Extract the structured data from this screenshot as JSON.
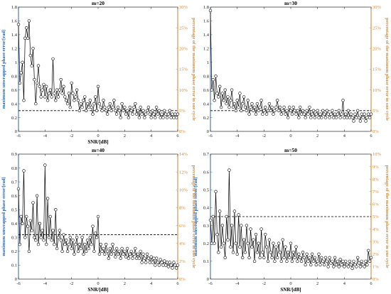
{
  "chart_data": [
    {
      "type": "line",
      "title": "m=20",
      "xlabel": "SNR/[dB]",
      "ylabel": "maximum unwrapped phase error/[rad]",
      "ylabel_right": "percentage of the maximum phase error in one cycle",
      "xlim": [
        -6,
        6
      ],
      "ylim": [
        0,
        1.8
      ],
      "ylim_right": [
        0,
        30
      ],
      "xticks": [
        -6,
        -4,
        -2,
        0,
        2,
        4,
        6
      ],
      "xtick_labels": [
        "-6",
        "-4",
        "-2",
        "0",
        "2",
        "4",
        "6"
      ],
      "yticks": [
        0,
        0.2,
        0.4,
        0.6,
        0.8,
        1,
        1.2,
        1.4,
        1.6,
        1.8
      ],
      "ytick_labels": [
        "0",
        "0.2",
        "0.4",
        "0.6",
        "0.8",
        "1",
        "1.2",
        "1.4",
        "1.6",
        "1.8"
      ],
      "yticks_right": [
        0,
        5,
        10,
        15,
        20,
        25,
        30
      ],
      "ytick_labels_right": [
        "0%",
        "5%",
        "10%",
        "15%",
        "20%",
        "25%",
        "30%"
      ],
      "threshold": 0.3,
      "x": [
        -6.0,
        -5.9,
        -5.8,
        -5.7,
        -5.6,
        -5.5,
        -5.4,
        -5.3,
        -5.2,
        -5.1,
        -5.0,
        -4.9,
        -4.8,
        -4.7,
        -4.6,
        -4.5,
        -4.4,
        -4.3,
        -4.2,
        -4.1,
        -4.0,
        -3.9,
        -3.8,
        -3.7,
        -3.6,
        -3.5,
        -3.4,
        -3.3,
        -3.2,
        -3.1,
        -3.0,
        -2.9,
        -2.8,
        -2.7,
        -2.6,
        -2.5,
        -2.4,
        -2.3,
        -2.2,
        -2.1,
        -2.0,
        -1.9,
        -1.8,
        -1.7,
        -1.6,
        -1.5,
        -1.4,
        -1.3,
        -1.2,
        -1.1,
        -1.0,
        -0.9,
        -0.8,
        -0.7,
        -0.6,
        -0.5,
        -0.4,
        -0.3,
        -0.2,
        -0.1,
        0.0,
        0.1,
        0.2,
        0.3,
        0.4,
        0.5,
        0.6,
        0.7,
        0.8,
        0.9,
        1.0,
        1.1,
        1.2,
        1.3,
        1.4,
        1.5,
        1.6,
        1.7,
        1.8,
        1.9,
        2.0,
        2.1,
        2.2,
        2.3,
        2.4,
        2.5,
        2.6,
        2.7,
        2.8,
        2.9,
        3.0,
        3.1,
        3.2,
        3.3,
        3.4,
        3.5,
        3.6,
        3.7,
        3.8,
        3.9,
        4.0,
        4.1,
        4.2,
        4.3,
        4.4,
        4.5,
        4.6,
        4.7,
        4.8,
        4.9,
        5.0,
        5.1,
        5.2,
        5.3,
        5.4,
        5.5,
        5.6,
        5.7,
        5.8,
        5.9,
        6.0
      ],
      "values": [
        1.55,
        0.7,
        0.85,
        1.0,
        0.45,
        1.35,
        1.5,
        1.35,
        1.6,
        1.1,
        0.95,
        1.2,
        0.75,
        0.4,
        0.7,
        0.95,
        0.65,
        0.5,
        0.6,
        0.68,
        0.5,
        0.65,
        0.45,
        0.55,
        0.6,
        0.5,
        1.05,
        0.55,
        0.45,
        0.6,
        0.5,
        0.6,
        0.75,
        0.55,
        0.65,
        0.5,
        0.45,
        0.4,
        0.55,
        0.35,
        0.7,
        0.55,
        0.45,
        0.5,
        0.6,
        0.45,
        0.3,
        0.4,
        0.35,
        0.45,
        0.5,
        0.3,
        0.4,
        0.35,
        0.45,
        0.35,
        0.25,
        0.4,
        0.5,
        0.3,
        0.65,
        0.4,
        0.35,
        0.3,
        0.45,
        0.35,
        0.3,
        0.25,
        0.35,
        0.4,
        0.3,
        0.35,
        0.45,
        0.3,
        0.25,
        0.35,
        0.3,
        0.2,
        0.4,
        0.3,
        0.35,
        0.25,
        0.3,
        0.2,
        0.35,
        0.3,
        0.25,
        0.35,
        0.4,
        0.25,
        0.3,
        0.2,
        0.35,
        0.25,
        0.3,
        0.2,
        0.25,
        0.3,
        0.35,
        0.25,
        0.2,
        0.3,
        0.25,
        0.2,
        0.35,
        0.25,
        0.3,
        0.2,
        0.25,
        0.2,
        0.3,
        0.25,
        0.2,
        0.25,
        0.3,
        0.2,
        0.25,
        0.2,
        0.25,
        0.2,
        0.25
      ]
    },
    {
      "type": "line",
      "title": "m=30",
      "xlabel": "",
      "ylabel": "",
      "ylabel_right": "percentage of the maximum phase error in one cycle",
      "xlim": [
        -6,
        6
      ],
      "ylim": [
        0,
        1.8
      ],
      "ylim_right": [
        0,
        30
      ],
      "xticks": [
        -6,
        -4,
        -2,
        0,
        2,
        4,
        6
      ],
      "xtick_labels": [
        "-6",
        "-4",
        "-2",
        "0",
        "2",
        "4",
        "6"
      ],
      "yticks": [
        0,
        0.2,
        0.4,
        0.6,
        0.8,
        1,
        1.2,
        1.4,
        1.6,
        1.8
      ],
      "ytick_labels": [
        "0",
        "0.2",
        "0.4",
        "0.6",
        "0.8",
        "1",
        "1.2",
        "1.4",
        "1.6",
        "1.8"
      ],
      "yticks_right": [
        0,
        5,
        10,
        15,
        20,
        25,
        30
      ],
      "ytick_labels_right": [
        "0%",
        "5%",
        "10%",
        "15%",
        "20%",
        "25%",
        "30%"
      ],
      "threshold": 0.3,
      "x": [
        -6.0,
        -5.9,
        -5.8,
        -5.7,
        -5.6,
        -5.5,
        -5.4,
        -5.3,
        -5.2,
        -5.1,
        -5.0,
        -4.9,
        -4.8,
        -4.7,
        -4.6,
        -4.5,
        -4.4,
        -4.3,
        -4.2,
        -4.1,
        -4.0,
        -3.9,
        -3.8,
        -3.7,
        -3.6,
        -3.5,
        -3.4,
        -3.3,
        -3.2,
        -3.1,
        -3.0,
        -2.9,
        -2.8,
        -2.7,
        -2.6,
        -2.5,
        -2.4,
        -2.3,
        -2.2,
        -2.1,
        -2.0,
        -1.9,
        -1.8,
        -1.7,
        -1.6,
        -1.5,
        -1.4,
        -1.3,
        -1.2,
        -1.1,
        -1.0,
        -0.9,
        -0.8,
        -0.7,
        -0.6,
        -0.5,
        -0.4,
        -0.3,
        -0.2,
        -0.1,
        0.0,
        0.1,
        0.2,
        0.3,
        0.4,
        0.5,
        0.6,
        0.7,
        0.8,
        0.9,
        1.0,
        1.1,
        1.2,
        1.3,
        1.4,
        1.5,
        1.6,
        1.7,
        1.8,
        1.9,
        2.0,
        2.1,
        2.2,
        2.3,
        2.4,
        2.5,
        2.6,
        2.7,
        2.8,
        2.9,
        3.0,
        3.1,
        3.2,
        3.3,
        3.4,
        3.5,
        3.6,
        3.7,
        3.8,
        3.9,
        4.0,
        4.1,
        4.2,
        4.3,
        4.4,
        4.5,
        4.6,
        4.7,
        4.8,
        4.9,
        5.0,
        5.1,
        5.2,
        5.3,
        5.4,
        5.5,
        5.6,
        5.7,
        5.8,
        5.9,
        6.0
      ],
      "values": [
        1.75,
        0.6,
        0.75,
        0.45,
        0.8,
        0.55,
        0.5,
        0.65,
        0.35,
        0.55,
        0.45,
        0.6,
        0.4,
        0.5,
        0.35,
        0.45,
        0.6,
        0.35,
        0.4,
        0.3,
        0.45,
        0.35,
        0.55,
        0.3,
        0.4,
        0.5,
        0.35,
        0.3,
        0.45,
        0.25,
        0.35,
        0.4,
        0.3,
        0.35,
        0.25,
        0.4,
        0.3,
        0.35,
        0.45,
        0.25,
        0.3,
        0.35,
        0.25,
        0.3,
        0.4,
        0.3,
        0.35,
        0.25,
        0.3,
        0.35,
        0.45,
        0.3,
        0.35,
        0.25,
        0.3,
        0.35,
        0.25,
        0.3,
        0.2,
        0.35,
        0.3,
        0.25,
        0.35,
        0.3,
        0.25,
        0.3,
        0.2,
        0.35,
        0.25,
        0.3,
        0.25,
        0.2,
        0.3,
        0.25,
        0.35,
        0.2,
        0.25,
        0.3,
        0.2,
        0.25,
        0.3,
        0.2,
        0.25,
        0.2,
        0.3,
        0.25,
        0.2,
        0.3,
        0.25,
        0.2,
        0.25,
        0.3,
        0.2,
        0.25,
        0.2,
        0.25,
        0.3,
        0.2,
        0.25,
        0.45,
        0.2,
        0.25,
        0.2,
        0.3,
        0.2,
        0.25,
        0.2,
        0.15,
        0.25,
        0.2,
        0.3,
        0.2,
        0.15,
        0.25,
        0.2,
        0.25,
        0.15,
        0.2,
        0.25,
        0.2,
        0.25
      ]
    },
    {
      "type": "line",
      "title": "m=40",
      "xlabel": "SNR/[dB]",
      "ylabel": "maximum unwrapped phase error/[rad]",
      "ylabel_right": "percentage of the maximum phase error in one cycle",
      "xlim": [
        -6,
        6
      ],
      "ylim": [
        0,
        0.9
      ],
      "ylim_right": [
        0,
        14
      ],
      "xticks": [
        -6,
        -4,
        -2,
        0,
        2,
        4,
        6
      ],
      "xtick_labels": [
        "-6",
        "-4",
        "-2",
        "0",
        "2",
        "4",
        "6"
      ],
      "yticks": [
        0,
        0.1,
        0.2,
        0.3,
        0.4,
        0.5,
        0.6,
        0.7,
        0.8,
        0.9
      ],
      "ytick_labels": [
        "0",
        "0.1",
        "0.2",
        "0.3",
        "0.4",
        "0.5",
        "0.6",
        "0.7",
        "0.8",
        "0.9"
      ],
      "yticks_right": [
        0,
        2,
        4,
        6,
        8,
        10,
        12,
        14
      ],
      "ytick_labels_right": [
        "0%",
        "2%",
        "4%",
        "6%",
        "8%",
        "10%",
        "12%",
        "14%"
      ],
      "threshold": 0.32,
      "x": [
        -6.0,
        -5.9,
        -5.8,
        -5.7,
        -5.6,
        -5.5,
        -5.4,
        -5.3,
        -5.2,
        -5.1,
        -5.0,
        -4.9,
        -4.8,
        -4.7,
        -4.6,
        -4.5,
        -4.4,
        -4.3,
        -4.2,
        -4.1,
        -4.0,
        -3.9,
        -3.8,
        -3.7,
        -3.6,
        -3.5,
        -3.4,
        -3.3,
        -3.2,
        -3.1,
        -3.0,
        -2.9,
        -2.8,
        -2.7,
        -2.6,
        -2.5,
        -2.4,
        -2.3,
        -2.2,
        -2.1,
        -2.0,
        -1.9,
        -1.8,
        -1.7,
        -1.6,
        -1.5,
        -1.4,
        -1.3,
        -1.2,
        -1.1,
        -1.0,
        -0.9,
        -0.8,
        -0.7,
        -0.6,
        -0.5,
        -0.4,
        -0.3,
        -0.2,
        -0.1,
        0.0,
        0.1,
        0.2,
        0.3,
        0.4,
        0.5,
        0.6,
        0.7,
        0.8,
        0.9,
        1.0,
        1.1,
        1.2,
        1.3,
        1.4,
        1.5,
        1.6,
        1.7,
        1.8,
        1.9,
        2.0,
        2.1,
        2.2,
        2.3,
        2.4,
        2.5,
        2.6,
        2.7,
        2.8,
        2.9,
        3.0,
        3.1,
        3.2,
        3.3,
        3.4,
        3.5,
        3.6,
        3.7,
        3.8,
        3.9,
        4.0,
        4.1,
        4.2,
        4.3,
        4.4,
        4.5,
        4.6,
        4.7,
        4.8,
        4.9,
        5.0,
        5.1,
        5.2,
        5.3,
        5.4,
        5.5,
        5.6,
        5.7,
        5.8,
        5.9,
        6.0
      ],
      "values": [
        0.65,
        0.25,
        0.45,
        0.4,
        0.78,
        0.3,
        0.45,
        0.38,
        0.2,
        0.42,
        0.35,
        0.55,
        0.3,
        0.28,
        0.6,
        0.25,
        0.4,
        0.3,
        0.35,
        0.28,
        0.82,
        0.25,
        0.58,
        0.3,
        0.45,
        0.28,
        0.35,
        0.25,
        0.5,
        0.22,
        0.3,
        0.35,
        0.28,
        0.2,
        0.32,
        0.25,
        0.28,
        0.2,
        0.25,
        0.3,
        0.22,
        0.28,
        0.18,
        0.25,
        0.3,
        0.2,
        0.25,
        0.22,
        0.3,
        0.18,
        0.25,
        0.2,
        0.28,
        0.22,
        0.3,
        0.25,
        0.38,
        0.2,
        0.33,
        0.3,
        0.45,
        0.18,
        0.25,
        0.2,
        0.22,
        0.18,
        0.25,
        0.2,
        0.15,
        0.22,
        0.18,
        0.25,
        0.2,
        0.16,
        0.22,
        0.18,
        0.2,
        0.15,
        0.22,
        0.18,
        0.2,
        0.16,
        0.22,
        0.15,
        0.18,
        0.2,
        0.15,
        0.18,
        0.22,
        0.15,
        0.18,
        0.15,
        0.2,
        0.12,
        0.18,
        0.15,
        0.12,
        0.18,
        0.15,
        0.12,
        0.16,
        0.12,
        0.15,
        0.1,
        0.15,
        0.12,
        0.1,
        0.14,
        0.12,
        0.1,
        0.13,
        0.1,
        0.12,
        0.09,
        0.12,
        0.1,
        0.08,
        0.12,
        0.1,
        0.08,
        0.1
      ]
    },
    {
      "type": "line",
      "title": "m=50",
      "xlabel": "SNR/[dB]",
      "ylabel": "maximum unwrapped phase error/[rad]",
      "ylabel_right": "percentage of the maximum phase error in one cycle",
      "xlim": [
        -6,
        6
      ],
      "ylim": [
        0,
        0.7
      ],
      "ylim_right": [
        0,
        10
      ],
      "xticks": [
        -6,
        -4,
        -2,
        0,
        2,
        4,
        6
      ],
      "xtick_labels": [
        "-6",
        "-4",
        "-2",
        "0",
        "2",
        "4",
        "6"
      ],
      "yticks": [
        0,
        0.1,
        0.2,
        0.3,
        0.4,
        0.5,
        0.6,
        0.7
      ],
      "ytick_labels": [
        "0",
        "0.1",
        "0.2",
        "0.3",
        "0.4",
        "0.5",
        "0.6",
        "0.7"
      ],
      "yticks_right": [
        0,
        1,
        2,
        3,
        4,
        5,
        6,
        7,
        8,
        9,
        10
      ],
      "ytick_labels_right": [
        "0%",
        "1%",
        "2%",
        "3%",
        "4%",
        "5%",
        "6%",
        "7%",
        "8%",
        "9%",
        "10%"
      ],
      "threshold": 0.35,
      "x": [
        -6.0,
        -5.9,
        -5.8,
        -5.7,
        -5.6,
        -5.5,
        -5.4,
        -5.3,
        -5.2,
        -5.1,
        -5.0,
        -4.9,
        -4.8,
        -4.7,
        -4.6,
        -4.5,
        -4.4,
        -4.3,
        -4.2,
        -4.1,
        -4.0,
        -3.9,
        -3.8,
        -3.7,
        -3.6,
        -3.5,
        -3.4,
        -3.3,
        -3.2,
        -3.1,
        -3.0,
        -2.9,
        -2.8,
        -2.7,
        -2.6,
        -2.5,
        -2.4,
        -2.3,
        -2.2,
        -2.1,
        -2.0,
        -1.9,
        -1.8,
        -1.7,
        -1.6,
        -1.5,
        -1.4,
        -1.3,
        -1.2,
        -1.1,
        -1.0,
        -0.9,
        -0.8,
        -0.7,
        -0.6,
        -0.5,
        -0.4,
        -0.3,
        -0.2,
        -0.1,
        0.0,
        0.1,
        0.2,
        0.3,
        0.4,
        0.5,
        0.6,
        0.7,
        0.8,
        0.9,
        1.0,
        1.1,
        1.2,
        1.3,
        1.4,
        1.5,
        1.6,
        1.7,
        1.8,
        1.9,
        2.0,
        2.1,
        2.2,
        2.3,
        2.4,
        2.5,
        2.6,
        2.7,
        2.8,
        2.9,
        3.0,
        3.1,
        3.2,
        3.3,
        3.4,
        3.5,
        3.6,
        3.7,
        3.8,
        3.9,
        4.0,
        4.1,
        4.2,
        4.3,
        4.4,
        4.5,
        4.6,
        4.7,
        4.8,
        4.9,
        5.0,
        5.1,
        5.2,
        5.3,
        5.4,
        5.5,
        5.6,
        5.7,
        5.8,
        5.9,
        6.0
      ],
      "values": [
        0.33,
        0.2,
        0.35,
        0.2,
        0.49,
        0.25,
        0.15,
        0.38,
        0.18,
        0.3,
        0.2,
        0.12,
        0.35,
        0.22,
        0.61,
        0.18,
        0.3,
        0.15,
        0.38,
        0.2,
        0.14,
        0.36,
        0.18,
        0.3,
        0.12,
        0.22,
        0.15,
        0.3,
        0.2,
        0.12,
        0.28,
        0.18,
        0.22,
        0.1,
        0.25,
        0.15,
        0.2,
        0.12,
        0.28,
        0.15,
        0.12,
        0.25,
        0.18,
        0.1,
        0.22,
        0.15,
        0.12,
        0.2,
        0.1,
        0.18,
        0.12,
        0.2,
        0.15,
        0.1,
        0.22,
        0.12,
        0.18,
        0.1,
        0.15,
        0.12,
        0.2,
        0.1,
        0.15,
        0.12,
        0.18,
        0.1,
        0.14,
        0.12,
        0.1,
        0.15,
        0.12,
        0.08,
        0.14,
        0.1,
        0.12,
        0.08,
        0.14,
        0.1,
        0.12,
        0.08,
        0.1,
        0.14,
        0.08,
        0.12,
        0.1,
        0.08,
        0.12,
        0.1,
        0.07,
        0.12,
        0.09,
        0.1,
        0.07,
        0.12,
        0.08,
        0.1,
        0.07,
        0.11,
        0.08,
        0.1,
        0.07,
        0.1,
        0.08,
        0.07,
        0.1,
        0.08,
        0.06,
        0.1,
        0.08,
        0.07,
        0.12,
        0.09,
        0.07,
        0.1,
        0.08,
        0.07,
        0.1,
        0.08,
        0.16,
        0.1,
        0.12
      ]
    }
  ]
}
